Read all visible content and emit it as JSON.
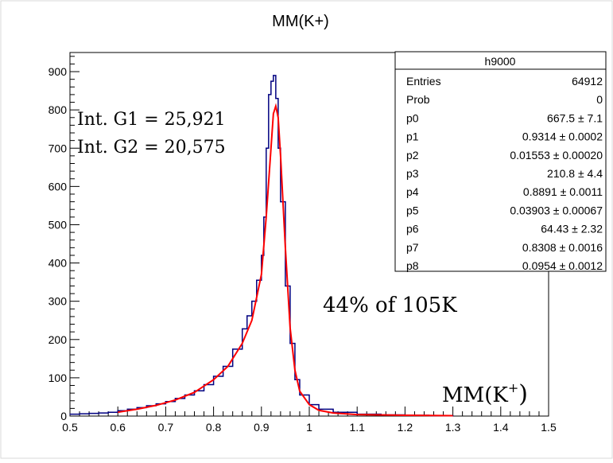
{
  "chart_data": {
    "type": "histogram",
    "title": "MM(K+)",
    "xlim": [
      0.5,
      1.5
    ],
    "ylim": [
      0,
      950
    ],
    "x_ticks": [
      "0.5",
      "0.6",
      "0.7",
      "0.8",
      "0.9",
      "1",
      "1.1",
      "1.2",
      "1.3",
      "1.4",
      "1.5"
    ],
    "y_ticks": [
      "0",
      "100",
      "200",
      "300",
      "400",
      "500",
      "600",
      "700",
      "800",
      "900"
    ],
    "grid": false,
    "series": [
      {
        "kind": "histogram",
        "color": "#000080",
        "x": [
          0.5,
          0.52,
          0.54,
          0.56,
          0.58,
          0.6,
          0.62,
          0.64,
          0.66,
          0.68,
          0.7,
          0.72,
          0.74,
          0.76,
          0.78,
          0.8,
          0.82,
          0.84,
          0.86,
          0.87,
          0.88,
          0.89,
          0.9,
          0.905,
          0.91,
          0.915,
          0.92,
          0.925,
          0.93,
          0.935,
          0.94,
          0.95,
          0.96,
          0.97,
          0.98,
          1.0,
          1.02,
          1.05,
          1.1,
          1.15,
          1.2,
          1.25,
          1.3
        ],
        "y": [
          5,
          6,
          7,
          8,
          10,
          14,
          18,
          22,
          27,
          32,
          38,
          46,
          55,
          66,
          82,
          104,
          130,
          175,
          228,
          262,
          300,
          355,
          420,
          520,
          700,
          840,
          875,
          890,
          830,
          700,
          560,
          340,
          190,
          95,
          55,
          30,
          18,
          10,
          5,
          3,
          2,
          1,
          0
        ]
      },
      {
        "kind": "fit",
        "color": "#ff0000",
        "x": [
          0.6,
          0.64,
          0.68,
          0.72,
          0.76,
          0.8,
          0.83,
          0.86,
          0.88,
          0.9,
          0.91,
          0.92,
          0.925,
          0.93,
          0.935,
          0.94,
          0.95,
          0.96,
          0.97,
          0.98,
          1.0,
          1.02,
          1.05,
          1.1,
          1.2,
          1.3
        ],
        "y": [
          10,
          18,
          28,
          42,
          62,
          95,
          130,
          190,
          250,
          370,
          520,
          700,
          790,
          810,
          780,
          680,
          440,
          230,
          120,
          65,
          30,
          15,
          8,
          4,
          2,
          1
        ]
      }
    ],
    "stats_box": {
      "title": "h9000",
      "rows": [
        {
          "label": "Entries",
          "value": "64912"
        },
        {
          "label": "Prob",
          "value": "0"
        },
        {
          "label": "p0",
          "value": "667.5 ± 7.1"
        },
        {
          "label": "p1",
          "value": "0.9314 ± 0.0002"
        },
        {
          "label": "p2",
          "value": "0.01553 ± 0.00020"
        },
        {
          "label": "p3",
          "value": "210.8 ± 4.4"
        },
        {
          "label": "p4",
          "value": "0.8891 ± 0.0011"
        },
        {
          "label": "p5",
          "value": "0.03903 ± 0.00067"
        },
        {
          "label": "p6",
          "value": "64.43 ± 2.32"
        },
        {
          "label": "p7",
          "value": "0.8308 ± 0.0016"
        },
        {
          "label": "p8",
          "value": "0.0954 ± 0.0012"
        }
      ]
    },
    "annotations": {
      "int_g1": "Int. G1 = 25,921",
      "int_g2": "Int. G2 = 20,575",
      "fraction": "44%  of 105K",
      "axis_label_base": "MM(K",
      "axis_label_sup": "+",
      "axis_label_close": ")"
    }
  }
}
